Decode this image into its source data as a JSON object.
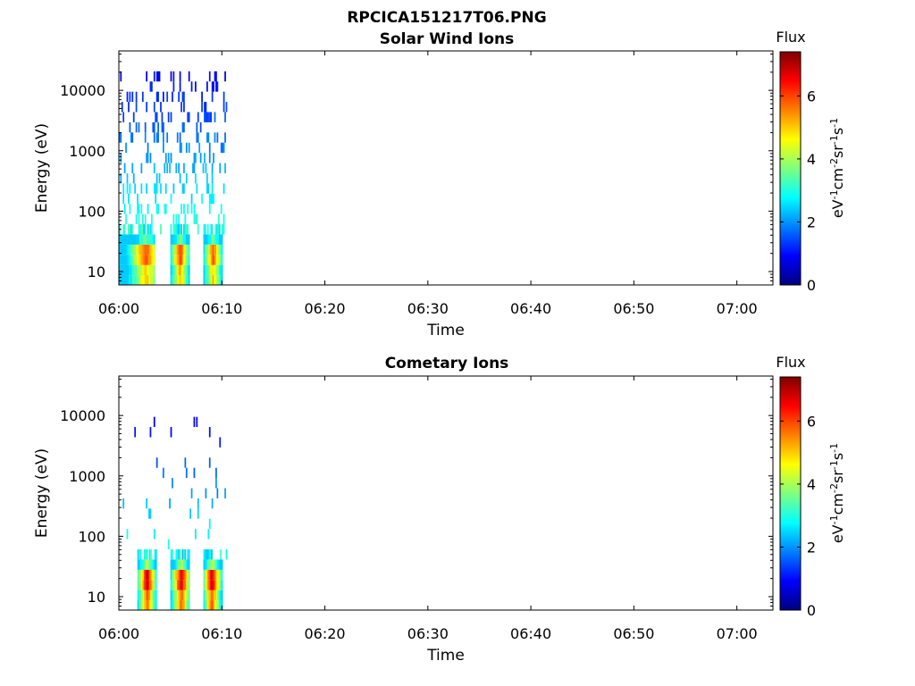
{
  "figure": {
    "title": "RPCICA151217T06.PNG"
  },
  "colorbar": {
    "label": "Flux",
    "unit_parts": [
      "eV",
      "-1",
      "cm",
      "-2",
      "sr",
      "-1",
      "s",
      "-1"
    ],
    "range": [
      0,
      7.4
    ],
    "ticks": [
      "0",
      "2",
      "4",
      "6"
    ],
    "colormap": "jet"
  },
  "chart_data": [
    {
      "type": "heatmap",
      "title": "Solar Wind Ions",
      "xlabel": "Time",
      "ylabel": "Energy (eV)",
      "x_ticks": [
        "06:00",
        "06:10",
        "06:20",
        "06:30",
        "06:40",
        "06:50",
        "07:00"
      ],
      "y_ticks": [
        "10",
        "100",
        "1000",
        "10000"
      ],
      "y_scale": "log",
      "xlim_minutes_after_0600": [
        0,
        63.5
      ],
      "ylim": [
        6,
        45000
      ],
      "grid": false,
      "bursts": [
        {
          "t_start": 0,
          "t_end": 3.5,
          "t_peak": 2.6,
          "peak_flux": 6.0
        },
        {
          "t_start": 5.0,
          "t_end": 6.8,
          "t_peak": 5.9,
          "peak_flux": 6.2
        },
        {
          "t_start": 8.2,
          "t_end": 10.0,
          "t_peak": 9.1,
          "peak_flux": 6.0
        }
      ],
      "scatter_summary": {
        "t_range": [
          0,
          10.5
        ],
        "energy_range_eV": [
          40,
          22000
        ],
        "flux_range": [
          0.8,
          3.2
        ]
      }
    },
    {
      "type": "heatmap",
      "title": "Cometary Ions",
      "xlabel": "Time",
      "ylabel": "Energy (eV)",
      "x_ticks": [
        "06:00",
        "06:10",
        "06:20",
        "06:30",
        "06:40",
        "06:50",
        "07:00"
      ],
      "y_ticks": [
        "10",
        "100",
        "1000",
        "10000"
      ],
      "y_scale": "log",
      "xlim_minutes_after_0600": [
        0,
        63.5
      ],
      "ylim": [
        6,
        45000
      ],
      "grid": false,
      "bursts": [
        {
          "t_start": 1.8,
          "t_end": 3.6,
          "t_peak": 2.7,
          "peak_flux": 6.9
        },
        {
          "t_start": 5.0,
          "t_end": 6.8,
          "t_peak": 6.0,
          "peak_flux": 7.0
        },
        {
          "t_start": 8.2,
          "t_end": 10.0,
          "t_peak": 9.0,
          "peak_flux": 6.9
        }
      ],
      "scatter_summary": {
        "t_range": [
          0,
          10.5
        ],
        "energy_range_eV": [
          50,
          11000
        ],
        "flux_range": [
          0.8,
          3.0
        ]
      }
    }
  ]
}
